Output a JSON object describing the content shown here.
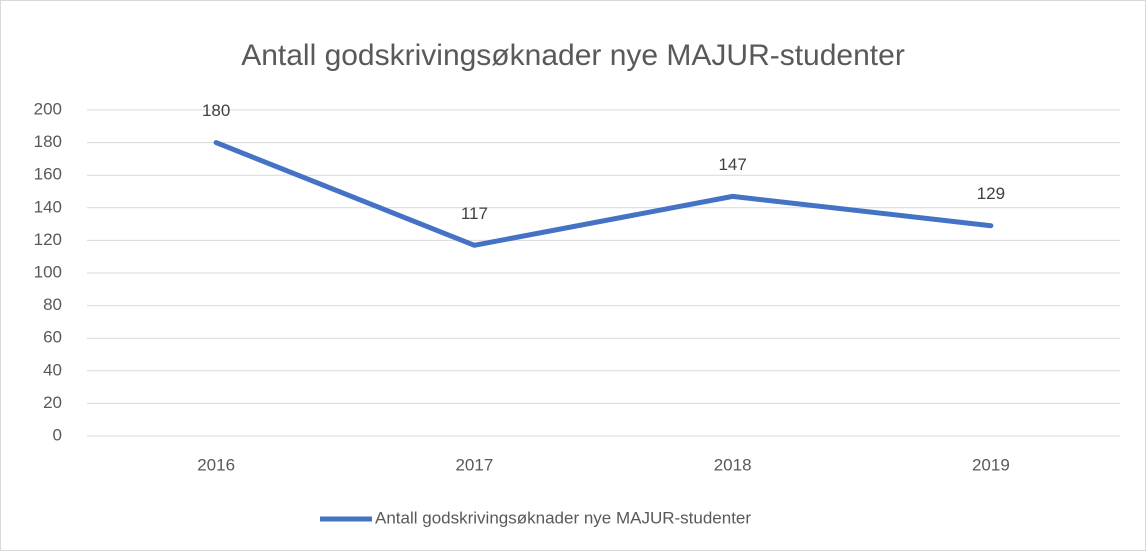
{
  "chart_data": {
    "type": "line",
    "title": "Antall godskrivingsøknader nye MAJUR-studenter",
    "categories": [
      "2016",
      "2017",
      "2018",
      "2019"
    ],
    "series": [
      {
        "name": "Antall godskrivingsøknader nye MAJUR-studenter",
        "color": "#4472c4",
        "values": [
          180,
          117,
          147,
          129
        ]
      }
    ],
    "ylim": [
      0,
      200
    ],
    "yticks": [
      0,
      20,
      40,
      60,
      80,
      100,
      120,
      140,
      160,
      180,
      200
    ],
    "grid": true,
    "legend": "bottom"
  }
}
